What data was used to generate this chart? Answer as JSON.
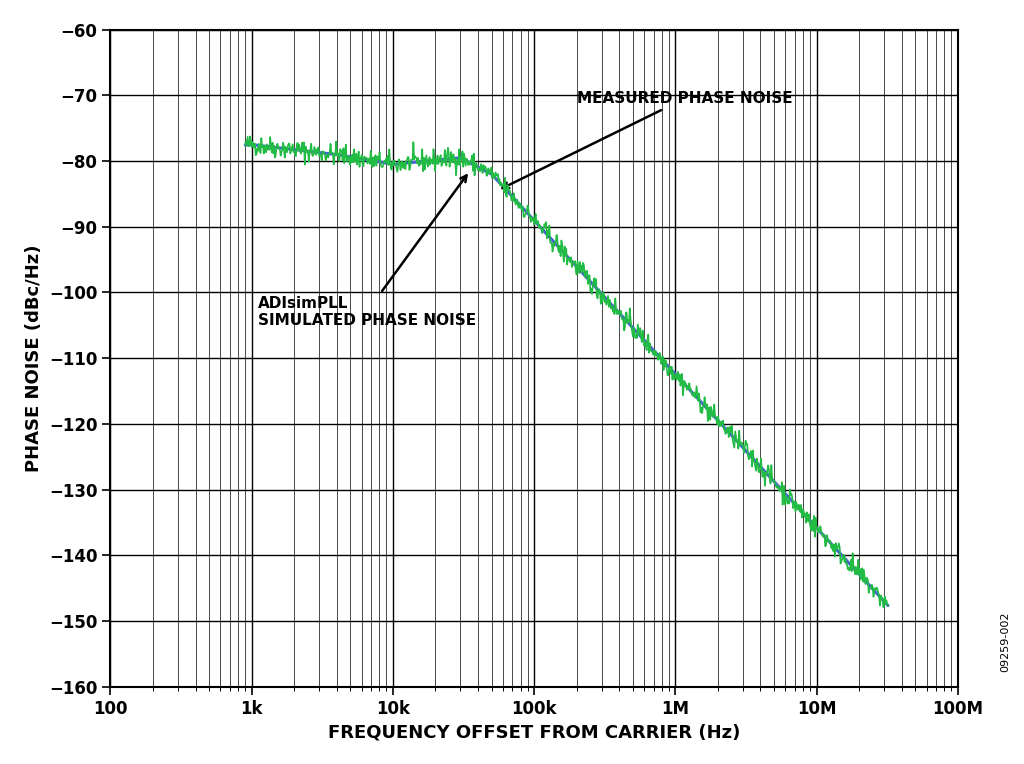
{
  "xlabel": "FREQUENCY OFFSET FROM CARRIER (Hz)",
  "ylabel": "PHASE NOISE (dBc/Hz)",
  "ylim": [
    -160,
    -60
  ],
  "yticks": [
    -160,
    -150,
    -140,
    -130,
    -120,
    -110,
    -100,
    -90,
    -80,
    -70,
    -60
  ],
  "xtick_locs": [
    100,
    1000,
    10000,
    100000,
    1000000,
    10000000,
    100000000
  ],
  "xtick_labels": [
    "100",
    "1k",
    "10k",
    "100k",
    "1M",
    "10M",
    "100M"
  ],
  "measured_color": "#22bb44",
  "simulated_color": "#4466cc",
  "measured_label": "MEASURED PHASE NOISE",
  "simulated_label": "ADIsimPLL\nSIMULATED PHASE NOISE",
  "watermark": "09259-002",
  "background_color": "#ffffff",
  "grid_color": "#000000",
  "axis_label_fontsize": 13,
  "tick_fontsize": 12,
  "annotation_fontsize": 11
}
